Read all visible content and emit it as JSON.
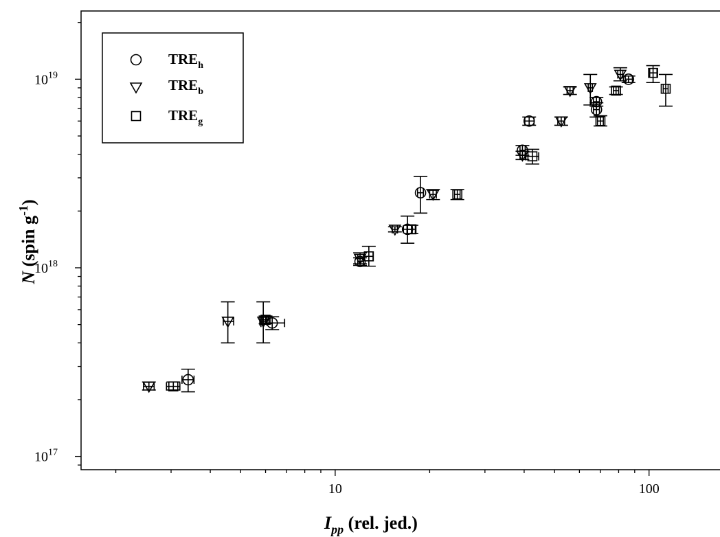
{
  "chart_data": {
    "type": "scatter",
    "title": "",
    "xlabel": {
      "main": "I",
      "sub": "pp",
      "rest": " (rel. jed.)"
    },
    "ylabel": {
      "italic": "N",
      "rest": " (spin g",
      "sup": "-1",
      "close": ")"
    },
    "xscale": "log",
    "yscale": "log",
    "xlim": [
      1.55,
      170
    ],
    "ylim": [
      8.5e+16,
      2.3e+19
    ],
    "x_ticks": [
      {
        "value": 10,
        "label": "10"
      },
      {
        "value": 100,
        "label": "100"
      }
    ],
    "y_ticks": [
      {
        "value": 1e+17,
        "base": "10",
        "exp": "17"
      },
      {
        "value": 1e+18,
        "base": "10",
        "exp": "18"
      },
      {
        "value": 1e+19,
        "base": "10",
        "exp": "19"
      }
    ],
    "grid": false,
    "legend_position": "top-left",
    "series": [
      {
        "name": {
          "base": "TRE",
          "sub": "h"
        },
        "marker": "circle",
        "points": [
          {
            "x": 3.4,
            "y": 2.55e+17,
            "yerr": [
              2.2e+17,
              2.9e+17
            ],
            "xerr": [
              3.25,
              3.55
            ]
          },
          {
            "x": 6.3,
            "y": 5.1e+17,
            "yerr": [
              4.7e+17,
              5.5e+17
            ],
            "xerr": [
              5.8,
              6.9
            ]
          },
          {
            "x": 12.0,
            "y": 1.08e+18,
            "yerr": [
              1.03e+18,
              1.13e+18
            ],
            "xerr": [
              11.8,
              12.3
            ]
          },
          {
            "x": 17.0,
            "y": 1.6e+18,
            "yerr": [
              1.35e+18,
              1.88e+18
            ],
            "xerr": [
              16.5,
              17.6
            ]
          },
          {
            "x": 18.7,
            "y": 2.5e+18,
            "yerr": [
              1.95e+18,
              3.05e+18
            ],
            "xerr": [
              18.3,
              19.1
            ]
          },
          {
            "x": 39.5,
            "y": 4.2e+18,
            "yerr": [
              3.95e+18,
              4.45e+18
            ],
            "xerr": [
              38.8,
              40.3
            ]
          },
          {
            "x": 41.5,
            "y": 6e+18,
            "yerr": [
              5.7e+18,
              6.3e+18
            ],
            "xerr": [
              40.2,
              43.0
            ]
          },
          {
            "x": 68.0,
            "y": 7.6e+18,
            "yerr": [
              7.2e+18,
              8e+18
            ],
            "xerr": [
              66.5,
              69.5
            ]
          },
          {
            "x": 68.0,
            "y": 6.9e+18,
            "yerr": [
              6.3e+18,
              7.5e+18
            ],
            "xerr": [
              66.5,
              69.5
            ]
          },
          {
            "x": 86.0,
            "y": 1e+19,
            "yerr": [
              9.6e+18,
              1.04e+19
            ],
            "xerr": [
              84.0,
              88.5
            ]
          }
        ]
      },
      {
        "name": {
          "base": "TRE",
          "sub": "b"
        },
        "marker": "triangle-down",
        "points": [
          {
            "x": 2.55,
            "y": 2.35e+17,
            "yerr": [
              2.25e+17,
              2.48e+17
            ],
            "xerr": [
              2.45,
              2.65
            ]
          },
          {
            "x": 4.55,
            "y": 5.2e+17,
            "yerr": [
              4e+17,
              6.6e+17
            ],
            "xerr": [
              4.4,
              4.75
            ]
          },
          {
            "x": 5.9,
            "y": 5.2e+17,
            "yerr": [
              4e+17,
              6.6e+17
            ],
            "xerr": [
              5.75,
              6.05
            ]
          },
          {
            "x": 12.0,
            "y": 1.12e+18,
            "yerr": [
              1.05e+18,
              1.2e+18
            ],
            "xerr": [
              11.8,
              12.3
            ]
          },
          {
            "x": 15.5,
            "y": 1.6e+18,
            "yerr": [
              1.55e+18,
              1.65e+18
            ],
            "xerr": [
              15.2,
              15.8
            ]
          },
          {
            "x": 20.5,
            "y": 2.45e+18,
            "yerr": [
              2.3e+18,
              2.6e+18
            ],
            "xerr": [
              20.0,
              21.0
            ]
          },
          {
            "x": 39.5,
            "y": 3.95e+18,
            "yerr": [
              3.75e+18,
              4.15e+18
            ],
            "xerr": [
              38.8,
              40.3
            ]
          },
          {
            "x": 52.5,
            "y": 6e+18,
            "yerr": [
              5.7e+18,
              6.3e+18
            ],
            "xerr": [
              51.2,
              53.8
            ]
          },
          {
            "x": 56.0,
            "y": 8.7e+18,
            "yerr": [
              8.3e+18,
              9.1e+18
            ],
            "xerr": [
              54.8,
              57.3
            ]
          },
          {
            "x": 65.0,
            "y": 9e+18,
            "yerr": [
              7.3e+18,
              1.06e+19
            ],
            "xerr": [
              64.0,
              66.0
            ]
          },
          {
            "x": 81.0,
            "y": 1.06e+19,
            "yerr": [
              9.8e+18,
              1.15e+19
            ],
            "xerr": [
              79.5,
              82.5
            ]
          }
        ]
      },
      {
        "name": {
          "base": "TRE",
          "sub": "g"
        },
        "marker": "square",
        "points": [
          {
            "x": 3.05,
            "y": 2.35e+17,
            "yerr": [
              2.25e+17,
              2.48e+17
            ],
            "xerr": [
              2.9,
              3.2
            ]
          },
          {
            "x": 6.0,
            "y": 5.3e+17,
            "yerr": [
              5.05e+17,
              5.55e+17
            ],
            "xerr": [
              5.85,
              6.15
            ]
          },
          {
            "x": 12.8,
            "y": 1.15e+18,
            "yerr": [
              1.02e+18,
              1.3e+18
            ],
            "xerr": [
              12.4,
              13.2
            ]
          },
          {
            "x": 17.5,
            "y": 1.6e+18,
            "yerr": [
              1.52e+18,
              1.68e+18
            ],
            "xerr": [
              17.0,
              18.0
            ]
          },
          {
            "x": 24.5,
            "y": 2.45e+18,
            "yerr": [
              2.3e+18,
              2.6e+18
            ],
            "xerr": [
              24.0,
              25.0
            ]
          },
          {
            "x": 42.5,
            "y": 3.9e+18,
            "yerr": [
              3.55e+18,
              4.25e+18
            ],
            "xerr": [
              40.5,
              44.5
            ]
          },
          {
            "x": 70.0,
            "y": 6e+18,
            "yerr": [
              5.65e+18,
              6.4e+18
            ],
            "xerr": [
              68.5,
              71.5
            ]
          },
          {
            "x": 78.5,
            "y": 8.7e+18,
            "yerr": [
              8.3e+18,
              9.1e+18
            ],
            "xerr": [
              77.0,
              80.0
            ]
          },
          {
            "x": 103.0,
            "y": 1.08e+19,
            "yerr": [
              9.6e+18,
              1.18e+19
            ],
            "xerr": [
              100.5,
              106.0
            ]
          },
          {
            "x": 113.0,
            "y": 8.9e+18,
            "yerr": [
              7.2e+18,
              1.06e+19
            ],
            "xerr": [
              111.0,
              115.0
            ]
          }
        ]
      }
    ]
  }
}
